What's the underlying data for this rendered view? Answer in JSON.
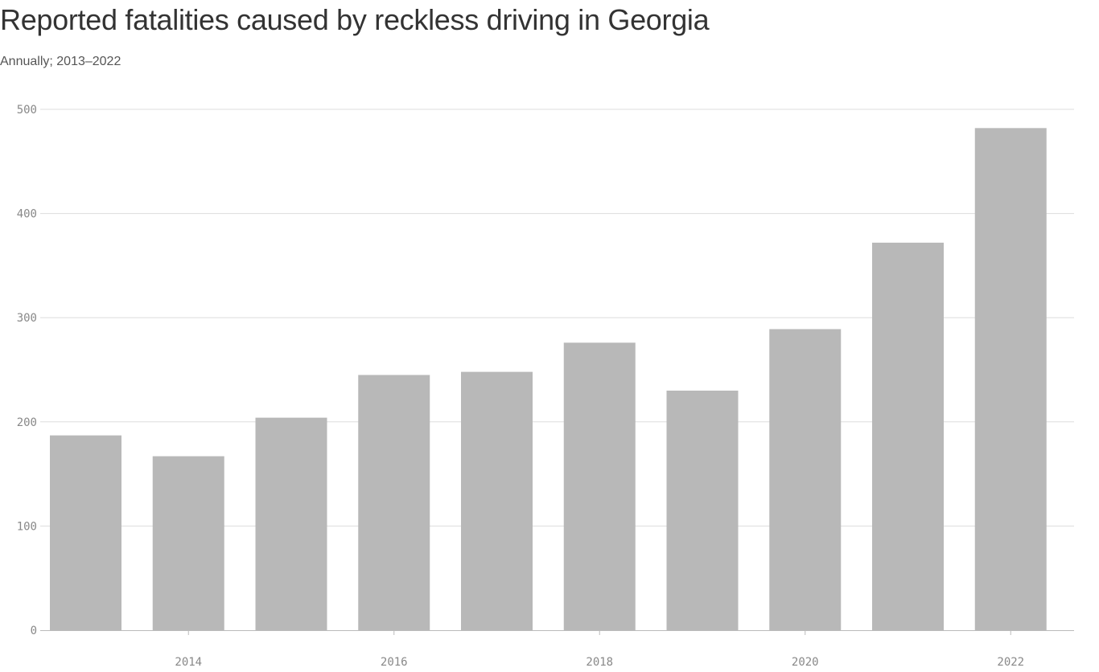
{
  "chart_data": {
    "type": "bar",
    "title": "Reported fatalities caused by reckless driving in Georgia",
    "subtitle": "Annually; 2013–2022",
    "xlabel": "",
    "ylabel": "",
    "categories": [
      "2013",
      "2014",
      "2015",
      "2016",
      "2017",
      "2018",
      "2019",
      "2020",
      "2021",
      "2022"
    ],
    "values": [
      187,
      167,
      204,
      245,
      248,
      276,
      230,
      289,
      372,
      482
    ],
    "x_tick_labels": [
      "2014",
      "2016",
      "2018",
      "2020",
      "2022"
    ],
    "y_ticks": [
      0,
      100,
      200,
      300,
      400,
      500
    ],
    "ylim": [
      0,
      500
    ],
    "grid": true,
    "bar_color": "#b8b8b8",
    "grid_color": "#dddddd"
  }
}
